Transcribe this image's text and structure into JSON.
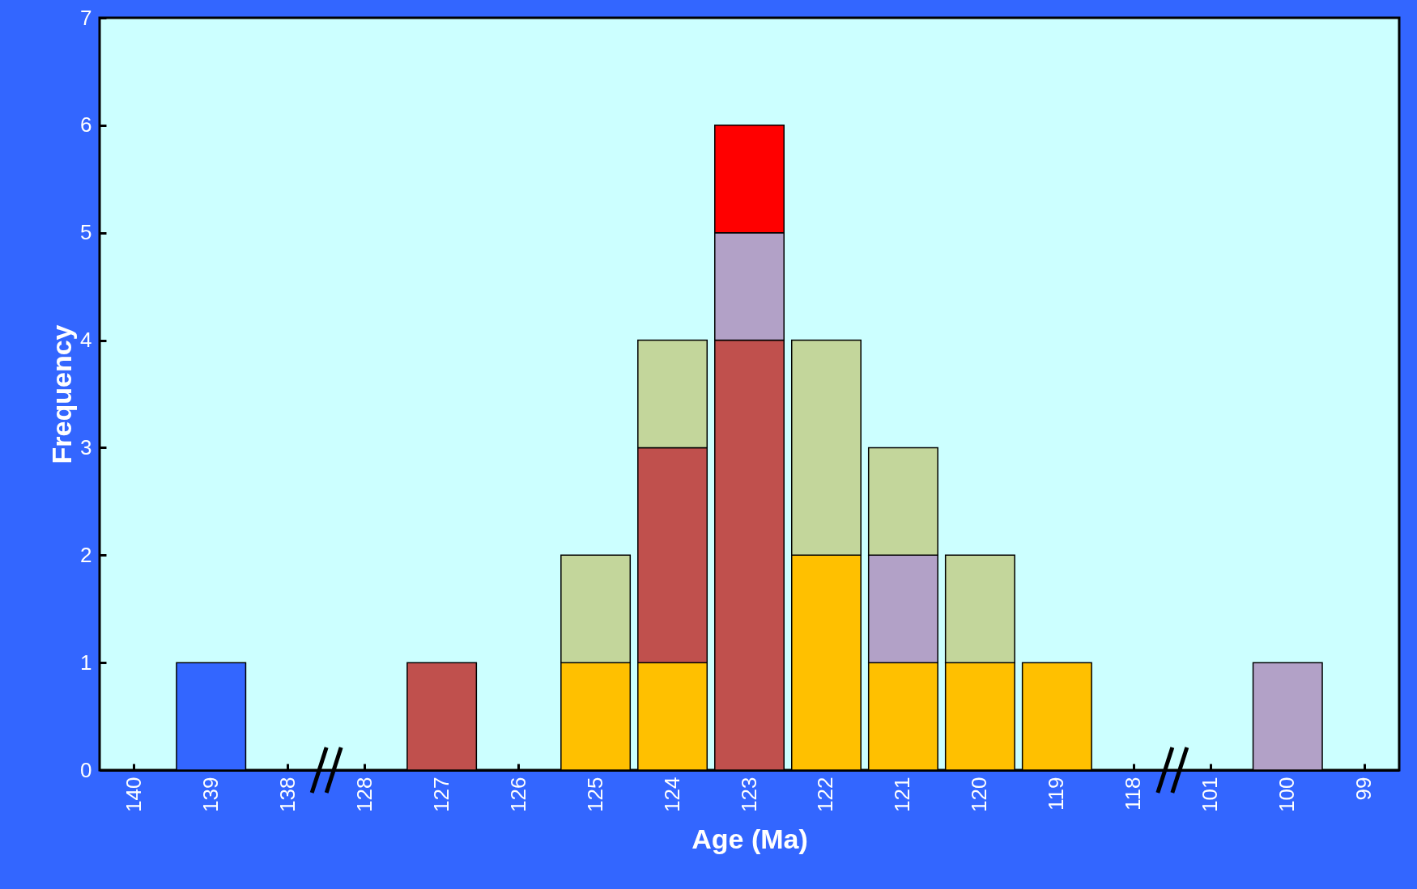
{
  "chart_data": {
    "type": "bar",
    "stacked": true,
    "xlabel": "Age (Ma)",
    "ylabel": "Frequency",
    "categories": [
      "140",
      "139",
      "138",
      "128",
      "127",
      "126",
      "125",
      "124",
      "123",
      "122",
      "121",
      "120",
      "119",
      "118",
      "101",
      "100",
      "99"
    ],
    "series": [
      {
        "color": "#3366ff",
        "values": [
          null,
          1,
          null,
          null,
          null,
          null,
          null,
          null,
          null,
          null,
          null,
          null,
          null,
          null,
          null,
          null,
          null
        ]
      },
      {
        "color": "#ffc000",
        "values": [
          null,
          null,
          null,
          null,
          null,
          null,
          1,
          1,
          null,
          2,
          1,
          1,
          1,
          null,
          null,
          null,
          null
        ]
      },
      {
        "color": "#c0504d",
        "values": [
          null,
          null,
          null,
          null,
          1,
          null,
          null,
          2,
          4,
          null,
          null,
          null,
          null,
          null,
          null,
          null,
          null
        ]
      },
      {
        "color": "#b2a1c7",
        "values": [
          null,
          null,
          null,
          null,
          null,
          null,
          null,
          null,
          1,
          null,
          1,
          null,
          null,
          null,
          null,
          1,
          null
        ]
      },
      {
        "color": "#c3d69b",
        "values": [
          null,
          null,
          null,
          null,
          null,
          null,
          1,
          1,
          null,
          2,
          1,
          1,
          null,
          null,
          null,
          null,
          null
        ]
      },
      {
        "color": "#ff0000",
        "values": [
          null,
          null,
          null,
          null,
          null,
          null,
          null,
          null,
          1,
          null,
          null,
          null,
          null,
          null,
          null,
          null,
          null
        ]
      }
    ],
    "ylim": [
      0,
      7
    ],
    "yticks": [
      0,
      1,
      2,
      3,
      4,
      5,
      6,
      7
    ],
    "grid": false,
    "legend": false
  }
}
